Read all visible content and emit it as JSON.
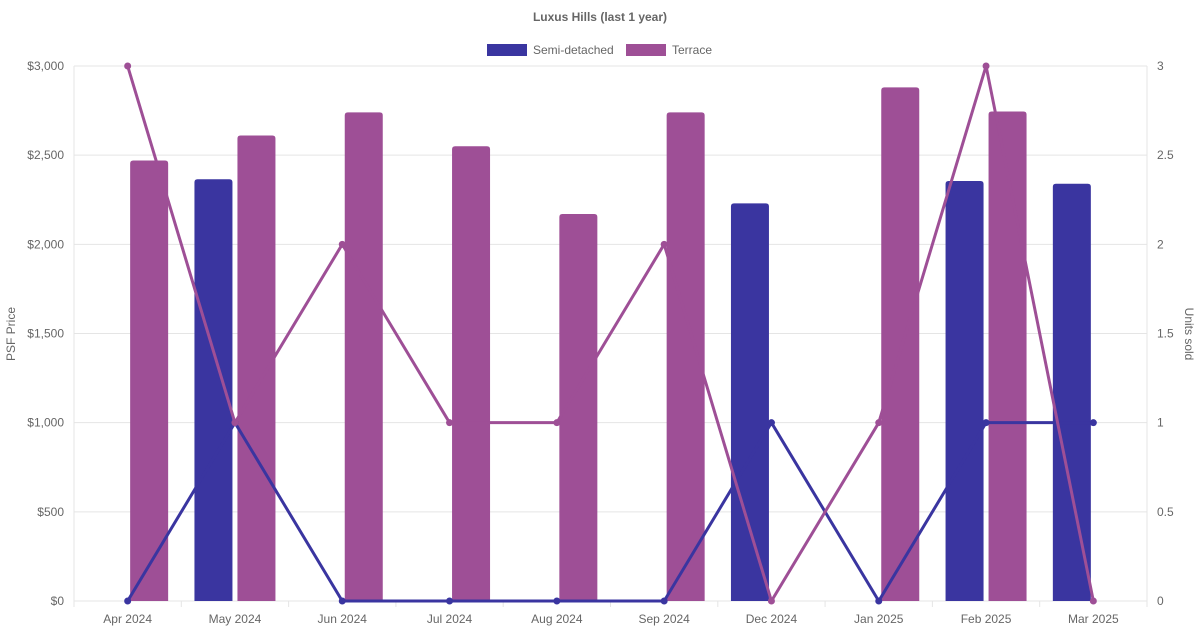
{
  "chart_data": {
    "type": "bar",
    "title": "Luxus Hills (last 1 year)",
    "categories": [
      "Apr 2024",
      "May 2024",
      "Jun 2024",
      "Jul 2024",
      "Aug 2024",
      "Sep 2024",
      "Dec 2024",
      "Jan 2025",
      "Feb 2025",
      "Mar 2025"
    ],
    "y_left": {
      "label": "PSF Price",
      "range": [
        0,
        3000
      ],
      "ticks": [
        0,
        500,
        1000,
        1500,
        2000,
        2500,
        3000
      ],
      "tick_labels": [
        "$0",
        "$500",
        "$1,000",
        "$1,500",
        "$2,000",
        "$2,500",
        "$3,000"
      ]
    },
    "y_right": {
      "label": "Units sold",
      "range": [
        0,
        3
      ],
      "ticks": [
        0,
        0.5,
        1,
        1.5,
        2,
        2.5,
        3
      ],
      "tick_labels": [
        "0",
        "0.5",
        "1",
        "1.5",
        "2",
        "2.5",
        "3"
      ]
    },
    "legend": {
      "placement": "top"
    },
    "grid": true,
    "series": [
      {
        "name": "Semi-detached",
        "color": "#3a35a0",
        "psf": [
          null,
          2365,
          null,
          null,
          null,
          null,
          2230,
          null,
          2355,
          2340
        ],
        "units": [
          0,
          1,
          0,
          0,
          0,
          0,
          1,
          0,
          1,
          1
        ]
      },
      {
        "name": "Terrace",
        "color": "#9e4f96",
        "psf": [
          2470,
          2610,
          2740,
          2550,
          2170,
          2740,
          null,
          2880,
          2745,
          null
        ],
        "units": [
          3,
          1,
          2,
          1,
          1,
          2,
          0,
          1,
          3,
          0
        ]
      }
    ]
  }
}
